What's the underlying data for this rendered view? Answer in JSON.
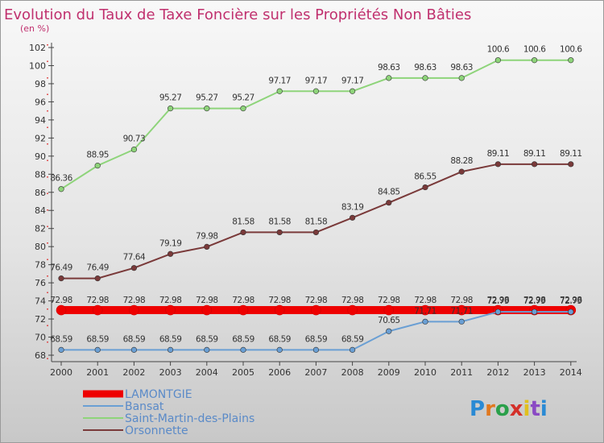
{
  "title": "Evolution du Taux de Taxe Foncière sur les Propriétés Non Bâties",
  "subtitle": "(en %)",
  "logo": {
    "letters": [
      "P",
      "r",
      "o",
      "x",
      "i",
      "t",
      "i"
    ],
    "colors": [
      "#2a8ad4",
      "#e0781e",
      "#2aa04a",
      "#d4302a",
      "#e0c01e",
      "#8a4ac4",
      "#2a8ad4"
    ]
  },
  "chart_data": {
    "type": "line",
    "title": "Evolution du Taux de Taxe Foncière sur les Propriétés Non Bâties",
    "ylabel": "(en %)",
    "xlabel": "",
    "x": [
      "2000",
      "2001",
      "2002",
      "2003",
      "2004",
      "2005",
      "2006",
      "2007",
      "2008",
      "2009",
      "2010",
      "2011",
      "2012",
      "2013",
      "2014"
    ],
    "yticks": [
      "68",
      "70",
      "72",
      "74",
      "76",
      "78",
      "80",
      "82",
      "84",
      "86",
      "88",
      "90",
      "92",
      "94",
      "96",
      "98",
      "100",
      "102"
    ],
    "ylim": [
      68,
      102
    ],
    "grid": false,
    "legend_position": "bottom-left",
    "series": [
      {
        "name": "LAMONTGIE",
        "color": "#ee0000",
        "width": 10,
        "values": [
          72.98,
          72.98,
          72.98,
          72.98,
          72.98,
          72.98,
          72.98,
          72.98,
          72.98,
          72.98,
          72.98,
          72.98,
          72.98,
          72.98,
          72.98
        ],
        "labels": [
          "72.98",
          "72.98",
          "72.98",
          "72.98",
          "72.98",
          "72.98",
          "72.98",
          "72.98",
          "72.98",
          "72.98",
          "72.98",
          "72.98",
          "72.98",
          "72.98",
          "72.98"
        ]
      },
      {
        "name": "Bansat",
        "color": "#6a9fd4",
        "width": 2,
        "values": [
          68.59,
          68.59,
          68.59,
          68.59,
          68.59,
          68.59,
          68.59,
          68.59,
          68.59,
          70.65,
          71.71,
          71.71,
          72.79,
          72.79,
          72.79
        ],
        "labels": [
          "68.59",
          "68.59",
          "68.59",
          "68.59",
          "68.59",
          "68.59",
          "68.59",
          "68.59",
          "68.59",
          "70.65",
          "71.71",
          "71.71",
          "72.79",
          "72.79",
          "72.79"
        ]
      },
      {
        "name": "Saint-Martin-des-Plains",
        "color": "#8ed47a",
        "width": 2,
        "values": [
          86.36,
          88.95,
          90.73,
          95.27,
          95.27,
          95.27,
          97.17,
          97.17,
          97.17,
          98.63,
          98.63,
          98.63,
          100.6,
          100.6,
          100.6
        ],
        "labels": [
          "86.36",
          "88.95",
          "90.73",
          "95.27",
          "95.27",
          "95.27",
          "97.17",
          "97.17",
          "97.17",
          "98.63",
          "98.63",
          "98.63",
          "100.6",
          "100.6",
          "100.6"
        ]
      },
      {
        "name": "Orsonnette",
        "color": "#7a3a3a",
        "width": 2,
        "values": [
          76.49,
          76.49,
          77.64,
          79.19,
          79.98,
          81.58,
          81.58,
          81.58,
          83.19,
          84.85,
          86.55,
          88.28,
          89.11,
          89.11,
          89.11
        ],
        "labels": [
          "76.49",
          "76.49",
          "77.64",
          "79.19",
          "79.98",
          "81.58",
          "81.58",
          "81.58",
          "83.19",
          "84.85",
          "86.55",
          "88.28",
          "89.11",
          "89.11",
          "89.11"
        ]
      }
    ]
  }
}
